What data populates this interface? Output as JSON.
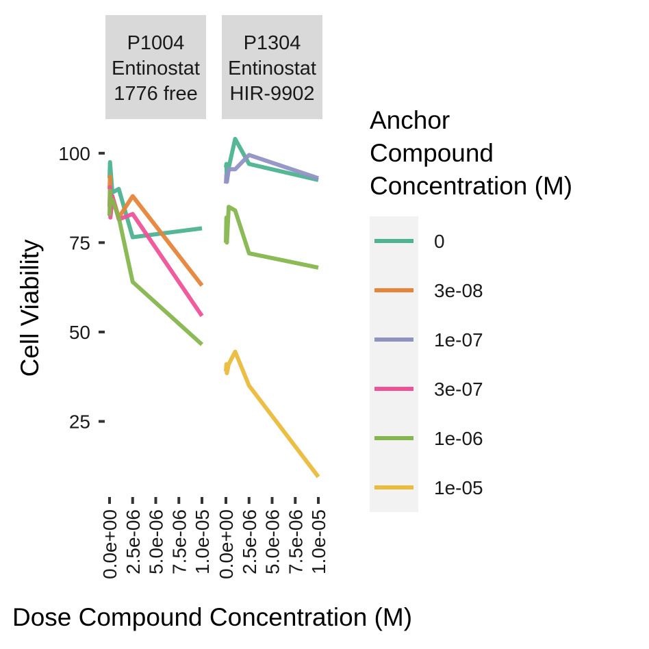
{
  "chart_data": {
    "type": "line",
    "xlabel": "Dose Compound Concentration (M)",
    "ylabel": "Cell Viability",
    "xlim": [
      0,
      1e-05
    ],
    "ylim": [
      5,
      108
    ],
    "x_ticks": [
      0,
      2.5e-06,
      5e-06,
      7.5e-06,
      1e-05
    ],
    "x_tick_labels": [
      "0.0e+00",
      "2.5e-06",
      "5.0e-06",
      "7.5e-06",
      "1.0e-05"
    ],
    "y_ticks": [
      25,
      50,
      75,
      100
    ],
    "y_tick_labels": [
      "25",
      "50",
      "75",
      "100"
    ],
    "grid": false,
    "legend": {
      "title": [
        "Anchor",
        "Compound",
        "Concentration (M)"
      ],
      "position": "right",
      "entries": [
        {
          "label": "0",
          "color": "#4DB391"
        },
        {
          "label": "3e-08",
          "color": "#E6843A"
        },
        {
          "label": "1e-07",
          "color": "#9192C4"
        },
        {
          "label": "3e-07",
          "color": "#EE5297"
        },
        {
          "label": "1e-06",
          "color": "#85B64D"
        },
        {
          "label": "1e-05",
          "color": "#EABC3C"
        }
      ]
    },
    "panels": [
      {
        "strip": [
          "P1004",
          "Entinostat",
          "1776 free"
        ],
        "series": [
          {
            "name": "0",
            "color": "#4DB391",
            "x": [
              0,
              5e-08,
              1e-07,
              3e-07,
              1e-06,
              2.5e-06,
              1e-05
            ],
            "y": [
              93,
              97.5,
              96,
              89,
              90,
              76.5,
              79
            ]
          },
          {
            "name": "3e-08",
            "color": "#E6843A",
            "x": [
              0,
              5e-08,
              1e-07,
              3e-07,
              1e-06,
              2.5e-06,
              1e-05
            ],
            "y": [
              90,
              93.5,
              83,
              88,
              82,
              88,
              63
            ]
          },
          {
            "name": "3e-07",
            "color": "#EE5297",
            "x": [
              0,
              5e-08,
              1e-07,
              3e-07,
              1e-06,
              2.5e-06,
              1e-05
            ],
            "y": [
              85,
              90.5,
              82,
              88,
              81.5,
              83,
              54.5
            ]
          },
          {
            "name": "1e-06",
            "color": "#85B64D",
            "x": [
              0,
              5e-08,
              1e-07,
              3e-07,
              1e-06,
              2.5e-06,
              1e-05
            ],
            "y": [
              82.5,
              89.5,
              86.5,
              87,
              82,
              64,
              46.5
            ]
          }
        ]
      },
      {
        "strip": [
          "P1304",
          "Entinostat",
          "HIR-9902"
        ],
        "series": [
          {
            "name": "0",
            "color": "#4DB391",
            "x": [
              0,
              5e-08,
              1e-07,
              3e-07,
              1e-06,
              2.5e-06,
              1e-05
            ],
            "y": [
              96,
              97,
              92.5,
              96,
              104,
              97,
              92.5
            ]
          },
          {
            "name": "1e-07",
            "color": "#9192C4",
            "x": [
              0,
              5e-08,
              1e-07,
              3e-07,
              1e-06,
              2.5e-06,
              1e-05
            ],
            "y": [
              91.5,
              94,
              92,
              95.5,
              95.5,
              99.5,
              93
            ]
          },
          {
            "name": "1e-06",
            "color": "#85B64D",
            "x": [
              0,
              5e-08,
              1e-07,
              3e-07,
              1e-06,
              2.5e-06,
              1e-05
            ],
            "y": [
              75,
              82,
              75,
              85,
              84,
              72,
              68
            ]
          },
          {
            "name": "1e-05",
            "color": "#EABC3C",
            "x": [
              0,
              5e-08,
              1e-07,
              3e-07,
              1e-06,
              2.5e-06,
              1e-05
            ],
            "y": [
              39,
              41,
              38.5,
              41,
              44.5,
              35,
              9.5
            ]
          }
        ]
      }
    ]
  }
}
